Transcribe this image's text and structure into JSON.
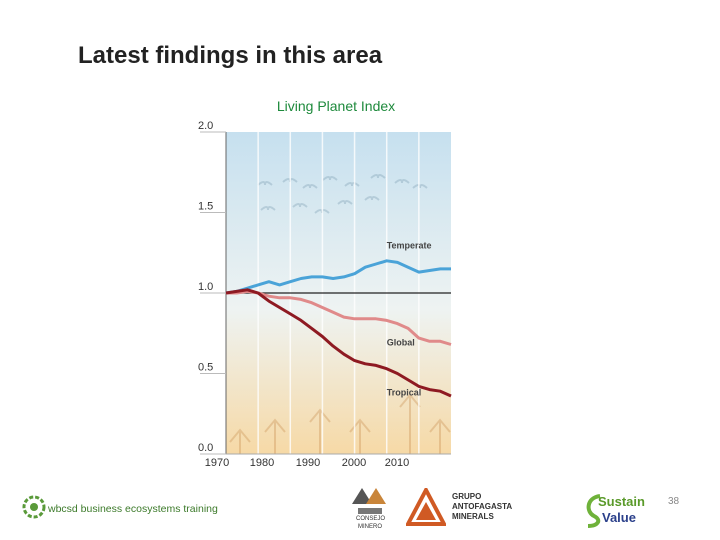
{
  "slide": {
    "title": "Latest findings in this area",
    "page_number": "38"
  },
  "footer": {
    "left_logo_text": "wbcsd business ecosystems training",
    "consejo_line1": "CONSEJO",
    "consejo_line2": "MINERO",
    "antofagasta_line1": "GRUPO",
    "antofagasta_line2": "ANTOFAGASTA",
    "antofagasta_line3": "MINERALS",
    "sustain_line1": "Sustain",
    "sustain_line2": "Value"
  },
  "colors": {
    "temperate": "#4aa3d8",
    "global": "#e08a8a",
    "tropical": "#8e1a22",
    "title_green": "#1e8a3c",
    "sky_top": "#c6e0ef",
    "ground_bottom": "#f6d9a6"
  },
  "chart_data": {
    "type": "line",
    "title": "Living Planet Index",
    "xlabel": "",
    "ylabel": "",
    "xlim": [
      1970,
      2010
    ],
    "ylim": [
      0,
      2
    ],
    "x_ticks": [
      "1970",
      "1980",
      "1990",
      "2000",
      "2010"
    ],
    "y_ticks": [
      "2.0",
      "1.5",
      "1.0",
      "0.5",
      "0.0"
    ],
    "grid": "vertical",
    "baseline": 1.0,
    "series": [
      {
        "name": "Temperate",
        "x": [
          1970,
          1972,
          1974,
          1976,
          1978,
          1980,
          1982,
          1984,
          1986,
          1988,
          1990,
          1992,
          1994,
          1996,
          1998,
          2000,
          2002,
          2004,
          2006,
          2008,
          2010,
          2012
        ],
        "y": [
          1.0,
          1.01,
          1.03,
          1.05,
          1.07,
          1.05,
          1.07,
          1.09,
          1.1,
          1.1,
          1.09,
          1.1,
          1.12,
          1.16,
          1.18,
          1.2,
          1.19,
          1.16,
          1.13,
          1.14,
          1.15,
          1.15
        ]
      },
      {
        "name": "Global",
        "x": [
          1970,
          1972,
          1974,
          1976,
          1978,
          1980,
          1982,
          1984,
          1986,
          1988,
          1990,
          1992,
          1994,
          1996,
          1998,
          2000,
          2002,
          2004,
          2006,
          2008,
          2010,
          2012
        ],
        "y": [
          1.0,
          1.0,
          1.01,
          1.0,
          0.98,
          0.97,
          0.97,
          0.96,
          0.94,
          0.91,
          0.88,
          0.85,
          0.84,
          0.84,
          0.84,
          0.83,
          0.81,
          0.78,
          0.72,
          0.7,
          0.7,
          0.68
        ]
      },
      {
        "name": "Tropical",
        "x": [
          1970,
          1972,
          1974,
          1976,
          1978,
          1980,
          1982,
          1984,
          1986,
          1988,
          1990,
          1992,
          1994,
          1996,
          1998,
          2000,
          2002,
          2004,
          2006,
          2008,
          2010,
          2012
        ],
        "y": [
          1.0,
          1.01,
          1.02,
          1.0,
          0.95,
          0.91,
          0.87,
          0.83,
          0.78,
          0.73,
          0.67,
          0.62,
          0.58,
          0.56,
          0.55,
          0.53,
          0.5,
          0.46,
          0.42,
          0.4,
          0.39,
          0.36
        ]
      }
    ]
  }
}
